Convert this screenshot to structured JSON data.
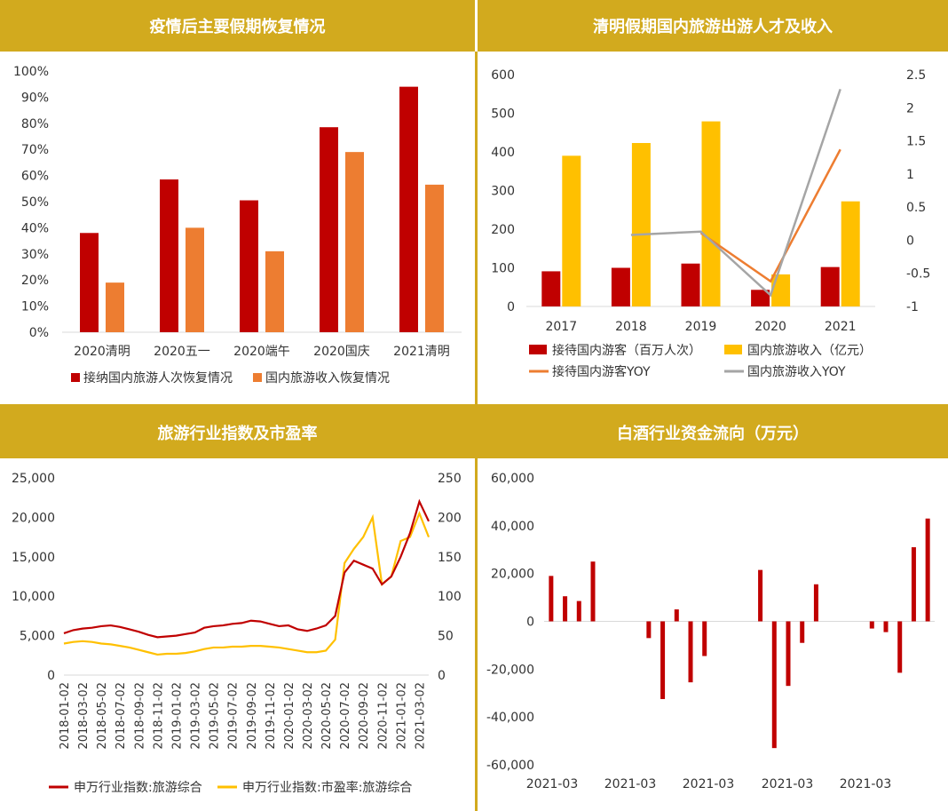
{
  "colors": {
    "header_bg": "#d2aa1e",
    "dark_red": "#c00000",
    "orange": "#ed7d31",
    "gold": "#ffc000",
    "gray": "#a5a5a5"
  },
  "chart_data": [
    {
      "type": "bar",
      "title": "疫情后主要假期恢复情况",
      "categories": [
        "2020清明",
        "2020五一",
        "2020端午",
        "2020国庆",
        "2021清明"
      ],
      "series": [
        {
          "name": "接纳国内旅游人次恢复情况",
          "values": [
            0.38,
            0.585,
            0.505,
            0.785,
            0.94
          ],
          "color": "#c00000"
        },
        {
          "name": "国内旅游收入恢复情况",
          "values": [
            0.19,
            0.4,
            0.31,
            0.69,
            0.565
          ],
          "color": "#ed7d31"
        }
      ],
      "ylim": [
        0,
        1
      ],
      "yticks": [
        "0%",
        "10%",
        "20%",
        "30%",
        "40%",
        "50%",
        "60%",
        "70%",
        "80%",
        "90%",
        "100%"
      ],
      "legend": "bottom"
    },
    {
      "type": "bar",
      "title": "清明假期国内旅游出游人才及收入",
      "categories": [
        "2017",
        "2018",
        "2019",
        "2020",
        "2021"
      ],
      "series": [
        {
          "name": "接待国内游客（百万人次）",
          "axis": "left",
          "type": "bar",
          "values": [
            91,
            100,
            111,
            43,
            102
          ],
          "color": "#c00000"
        },
        {
          "name": "国内旅游收入（亿元）",
          "axis": "left",
          "type": "bar",
          "values": [
            390,
            423,
            479,
            83,
            272
          ],
          "color": "#ffc000"
        },
        {
          "name": "接待国内游客YOY",
          "axis": "right",
          "type": "line",
          "values": [
            null,
            null,
            0.11,
            -0.62,
            1.37
          ],
          "color": "#ed7d31"
        },
        {
          "name": "国内旅游收入YOY",
          "axis": "right",
          "type": "line",
          "values": [
            null,
            0.08,
            0.13,
            -0.83,
            2.28
          ],
          "color": "#a5a5a5"
        }
      ],
      "ylim": [
        0,
        600
      ],
      "yticks": [
        "0",
        "100",
        "200",
        "300",
        "400",
        "500",
        "600"
      ],
      "y2lim": [
        -1,
        2.5
      ],
      "y2ticks": [
        "-1",
        "-0.5",
        "0",
        "0.5",
        "1",
        "1.5",
        "2",
        "2.5"
      ],
      "legend": "bottom"
    },
    {
      "type": "line",
      "title": "旅游行业指数及市盈率",
      "x": [
        "2018-01-02",
        "2018-02-02",
        "2018-03-02",
        "2018-04-02",
        "2018-05-02",
        "2018-06-02",
        "2018-07-02",
        "2018-08-02",
        "2018-09-02",
        "2018-10-02",
        "2018-11-02",
        "2018-12-02",
        "2019-01-02",
        "2019-02-02",
        "2019-03-02",
        "2019-04-02",
        "2019-05-02",
        "2019-06-02",
        "2019-07-02",
        "2019-08-02",
        "2019-09-02",
        "2019-10-02",
        "2019-11-02",
        "2019-12-02",
        "2020-01-02",
        "2020-02-02",
        "2020-03-02",
        "2020-04-02",
        "2020-05-02",
        "2020-06-02",
        "2020-07-02",
        "2020-08-02",
        "2020-09-02",
        "2020-10-02",
        "2020-11-02",
        "2020-12-02",
        "2021-01-02",
        "2021-02-02",
        "2021-03-02",
        "2021-04-02"
      ],
      "xtick_labels": [
        "2018-01-02",
        "2018-03-02",
        "2018-05-02",
        "2018-07-02",
        "2018-09-02",
        "2018-11-02",
        "2019-01-02",
        "2019-03-02",
        "2019-05-02",
        "2019-07-02",
        "2019-09-02",
        "2019-11-02",
        "2020-01-02",
        "2020-03-02",
        "2020-05-02",
        "2020-07-02",
        "2020-09-02",
        "2020-11-02",
        "2021-01-02",
        "2021-03-02"
      ],
      "series": [
        {
          "name": "申万行业指数:旅游综合",
          "axis": "left",
          "color": "#c00000",
          "values": [
            5300,
            5700,
            5900,
            6000,
            6200,
            6300,
            6100,
            5800,
            5500,
            5100,
            4800,
            4900,
            5000,
            5200,
            5400,
            6000,
            6200,
            6300,
            6500,
            6600,
            6900,
            6800,
            6500,
            6200,
            6300,
            5800,
            5600,
            5900,
            6300,
            7500,
            13000,
            14500,
            14000,
            13500,
            11500,
            12500,
            15000,
            18000,
            22000,
            19500
          ]
        },
        {
          "name": "申万行业指数:市盈率:旅游综合",
          "axis": "right",
          "color": "#ffc000",
          "values": [
            40,
            42,
            43,
            42,
            40,
            39,
            37,
            35,
            32,
            29,
            26,
            27,
            27,
            28,
            30,
            33,
            35,
            35,
            36,
            36,
            37,
            37,
            36,
            35,
            33,
            31,
            29,
            29,
            31,
            45,
            142,
            160,
            175,
            200,
            115,
            125,
            170,
            175,
            205,
            175
          ]
        }
      ],
      "ylim": [
        0,
        25000
      ],
      "yticks": [
        "0",
        "5,000",
        "10,000",
        "15,000",
        "20,000",
        "25,000"
      ],
      "y2lim": [
        0,
        250
      ],
      "y2ticks": [
        "0",
        "50",
        "100",
        "150",
        "200",
        "250"
      ],
      "legend": "bottom"
    },
    {
      "type": "bar",
      "title": "白酒行业资金流向（万元）",
      "values": [
        19000,
        10500,
        8500,
        25000,
        0,
        0,
        0,
        -7000,
        -32500,
        5000,
        -25500,
        -14500,
        0,
        0,
        0,
        21500,
        -53000,
        -27000,
        -9000,
        15500,
        0,
        0,
        0,
        -3000,
        -4500,
        -21500,
        31000,
        43000
      ],
      "xtick_labels": [
        "2021-03",
        "2021-03",
        "2021-03",
        "2021-03",
        "2021-03"
      ],
      "ylim": [
        -60000,
        60000
      ],
      "yticks": [
        "60,000",
        "40,000",
        "20,000",
        "0",
        "-20,000",
        "-40,000",
        "-60,000"
      ],
      "color": "#c00000"
    }
  ]
}
